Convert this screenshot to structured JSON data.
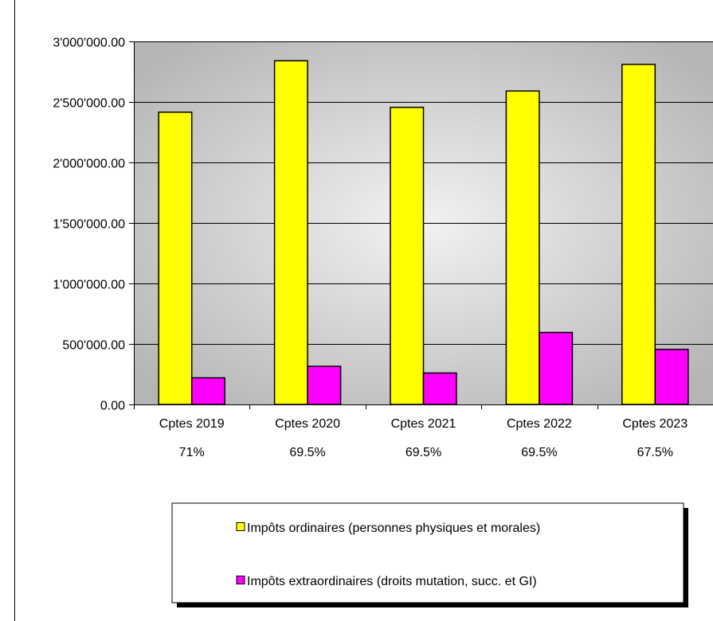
{
  "chart_data": {
    "type": "bar",
    "categories": [
      "Cptes 2019",
      "Cptes 2020",
      "Cptes 2021",
      "Cptes 2022",
      "Cptes 2023"
    ],
    "category_sublabels": [
      "71%",
      "69.5%",
      "69.5%",
      "69.5%",
      "67.5%"
    ],
    "series": [
      {
        "name": "Impôts ordinaires (personnes physiques et morales)",
        "color": "#ffff00",
        "values": [
          2415000,
          2840000,
          2455000,
          2590000,
          2810000
        ]
      },
      {
        "name": "Impôts extraordinaires (droits mutation, succ. et GI)",
        "color": "#ff00ff",
        "values": [
          220000,
          315000,
          260000,
          595000,
          455000
        ]
      }
    ],
    "ylim": [
      0,
      3000000
    ],
    "yticks": [
      0,
      500000,
      1000000,
      1500000,
      2000000,
      2500000,
      3000000
    ],
    "ytick_labels": [
      "0.00",
      "500'000.00",
      "1'000'000.00",
      "1'500'000.00",
      "2'000'000.00",
      "2'500'000.00",
      "3'000'000.00"
    ],
    "title": "",
    "xlabel": "",
    "ylabel": "",
    "grid": true,
    "legend_position": "bottom-right"
  }
}
